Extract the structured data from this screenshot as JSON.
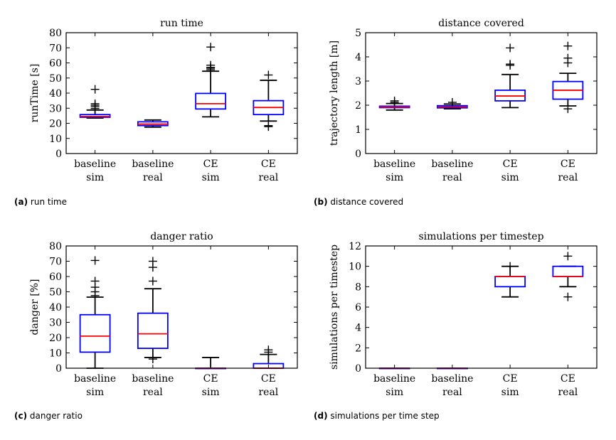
{
  "captions": [
    {
      "label": "(a)",
      "text": "run time"
    },
    {
      "label": "(b)",
      "text": "distance covered"
    },
    {
      "label": "(c)",
      "text": "danger ratio"
    },
    {
      "label": "(d)",
      "text": "simulations per time step"
    }
  ],
  "colors": {
    "box": "#0000ff",
    "median": "#ff0000",
    "whisker": "#000000",
    "frame": "#000000"
  },
  "chart_data": [
    {
      "type": "box",
      "title": "run time",
      "ylabel": "runTime [s]",
      "ylim": [
        0,
        80
      ],
      "yticks": [
        0,
        10,
        20,
        30,
        40,
        50,
        60,
        70,
        80
      ],
      "categories": [
        [
          "baseline",
          "sim"
        ],
        [
          "baseline",
          "real"
        ],
        [
          "CE",
          "sim"
        ],
        [
          "CE",
          "real"
        ]
      ],
      "boxes": [
        {
          "whislo": 23.5,
          "q1": 24,
          "med": 24.5,
          "q3": 25.8,
          "whishi": 28.8,
          "fliers": [
            29.8,
            31,
            32,
            33,
            42.5
          ]
        },
        {
          "whislo": 17.5,
          "q1": 18.5,
          "med": 19.5,
          "q3": 21,
          "whishi": 22.2,
          "fliers": []
        },
        {
          "whislo": 24.3,
          "q1": 29.5,
          "med": 33,
          "q3": 39.8,
          "whishi": 54.5,
          "fliers": [
            55.5,
            56.5,
            57,
            58.5,
            70.5
          ]
        },
        {
          "whislo": 21.5,
          "q1": 25.8,
          "med": 30.5,
          "q3": 35,
          "whishi": 48.5,
          "fliers": [
            17.8,
            18.5,
            52
          ]
        }
      ]
    },
    {
      "type": "box",
      "title": "distance covered",
      "ylabel": "trajectory length [m]",
      "ylim": [
        0,
        5
      ],
      "yticks": [
        0,
        1,
        2,
        3,
        4,
        5
      ],
      "categories": [
        [
          "baseline",
          "sim"
        ],
        [
          "baseline",
          "real"
        ],
        [
          "CE",
          "sim"
        ],
        [
          "CE",
          "real"
        ]
      ],
      "boxes": [
        {
          "whislo": 1.8,
          "q1": 1.9,
          "med": 1.93,
          "q3": 1.96,
          "whishi": 2.07,
          "fliers": [
            2.12,
            2.18
          ]
        },
        {
          "whislo": 1.85,
          "q1": 1.89,
          "med": 1.93,
          "q3": 1.98,
          "whishi": 2.05,
          "fliers": [
            2.12
          ]
        },
        {
          "whislo": 1.9,
          "q1": 2.18,
          "med": 2.38,
          "q3": 2.62,
          "whishi": 3.27,
          "fliers": [
            3.65,
            3.7,
            4.37
          ]
        },
        {
          "whislo": 1.97,
          "q1": 2.25,
          "med": 2.62,
          "q3": 2.98,
          "whishi": 3.32,
          "fliers": [
            1.85,
            3.75,
            3.95,
            4.45
          ]
        }
      ]
    },
    {
      "type": "box",
      "title": "danger ratio",
      "ylabel": "danger [%]",
      "ylim": [
        0,
        80
      ],
      "yticks": [
        0,
        10,
        20,
        30,
        40,
        50,
        60,
        70,
        80
      ],
      "categories": [
        [
          "baseline",
          "sim"
        ],
        [
          "baseline",
          "real"
        ],
        [
          "CE",
          "sim"
        ],
        [
          "CE",
          "real"
        ]
      ],
      "boxes": [
        {
          "whislo": 0,
          "q1": 10.5,
          "med": 21,
          "q3": 35,
          "whishi": 46.5,
          "fliers": [
            47.5,
            50,
            53,
            57,
            70.5
          ]
        },
        {
          "whislo": 7,
          "q1": 13,
          "med": 22.5,
          "q3": 36,
          "whishi": 52,
          "fliers": [
            6,
            57,
            66,
            70
          ]
        },
        {
          "whislo": 0,
          "q1": 0,
          "med": 0,
          "q3": 0,
          "whishi": 7,
          "fliers": []
        },
        {
          "whislo": 0,
          "q1": 0,
          "med": 0,
          "q3": 3,
          "whishi": 9,
          "fliers": [
            10.5,
            12
          ]
        }
      ]
    },
    {
      "type": "box",
      "title": "simulations per timestep",
      "ylabel": "simulations per timestep",
      "ylim": [
        0,
        12
      ],
      "yticks": [
        0,
        2,
        4,
        6,
        8,
        10,
        12
      ],
      "categories": [
        [
          "baseline",
          "sim"
        ],
        [
          "baseline",
          "real"
        ],
        [
          "CE",
          "sim"
        ],
        [
          "CE",
          "real"
        ]
      ],
      "boxes": [
        {
          "whislo": 0,
          "q1": 0,
          "med": 0,
          "q3": 0,
          "whishi": 0,
          "fliers": []
        },
        {
          "whislo": 0,
          "q1": 0,
          "med": 0,
          "q3": 0,
          "whishi": 0,
          "fliers": []
        },
        {
          "whislo": 7,
          "q1": 8,
          "med": 9,
          "q3": 9,
          "whishi": 10,
          "fliers": [
            10
          ]
        },
        {
          "whislo": 8,
          "q1": 9,
          "med": 9,
          "q3": 10,
          "whishi": 10,
          "fliers": [
            7,
            11
          ]
        }
      ]
    }
  ]
}
